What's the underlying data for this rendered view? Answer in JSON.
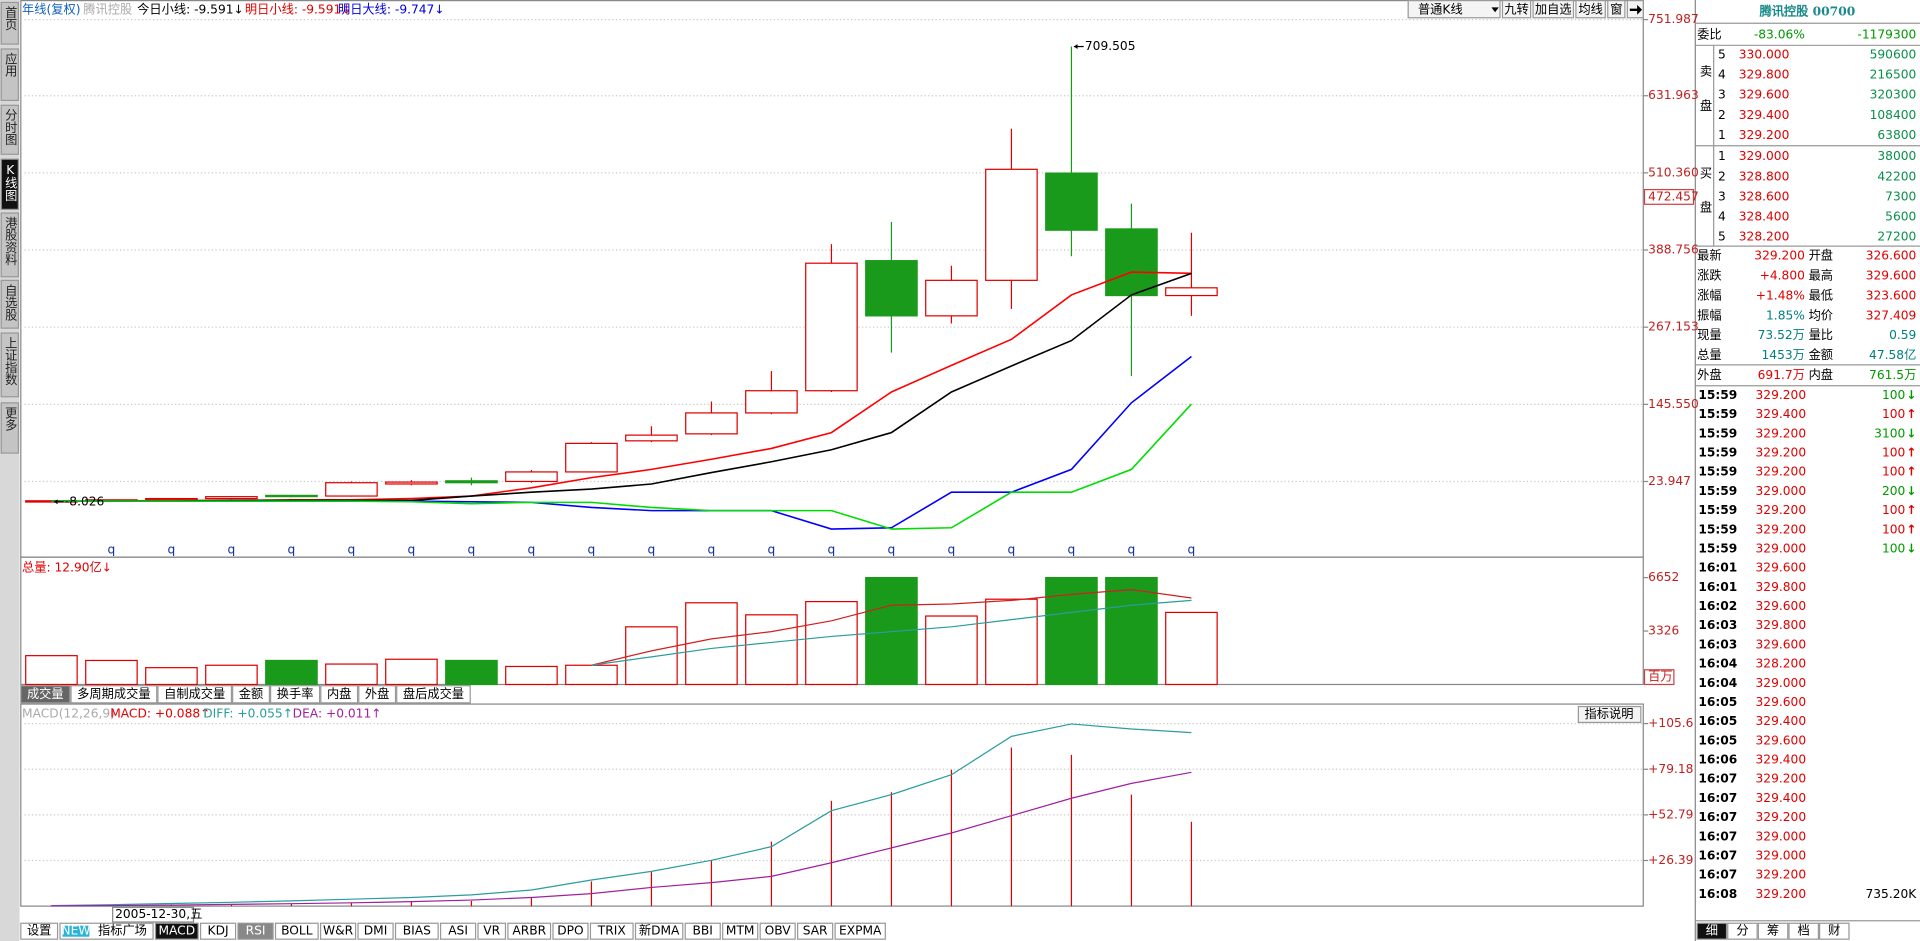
{
  "sidebar": {
    "tabs": [
      "首页",
      "应用",
      "分时图",
      "K线图",
      "港股资料",
      "自选股",
      "上证指数",
      "更多"
    ],
    "active": 3
  },
  "header": {
    "period": "年线(复权)",
    "name": "腾讯控股",
    "indicators": [
      "今日小线: -9.591↓",
      "明日小线: -9.591↓",
      "明日大线: -9.747↓"
    ],
    "indicator_colors": [
      "#000000",
      "#e00000",
      "#0000e0"
    ]
  },
  "toolbar": [
    "普通K线",
    "九转",
    "加自选",
    "均线",
    "窗"
  ],
  "kline": {
    "ylim": [
      -95.3,
      751.987
    ],
    "yticks": [
      23.947,
      {
        "value": 145.55,
        "label": "145.550"
      },
      267.153,
      388.756,
      {
        "value": 510.36,
        "label": "510.360"
      },
      631.963,
      751.987
    ],
    "grid": true,
    "cursor_value": 472.457,
    "categories": [
      null,
      "q",
      "q",
      "q",
      "q",
      "q",
      "q",
      "q",
      "q",
      "q",
      "q",
      "q",
      "q",
      "q",
      "q",
      "q",
      "q",
      "q",
      "q",
      "q"
    ],
    "up_color": "#e00000",
    "down_color": "#1a9a1a",
    "candles": [
      {
        "open": -7,
        "high": -6,
        "low": -8.026,
        "close": -6.5
      },
      {
        "open": -7,
        "high": -5,
        "low": -8,
        "close": -5
      },
      {
        "open": -5,
        "high": -3,
        "low": -6,
        "close": -3
      },
      {
        "open": -3,
        "high": 1,
        "low": -4,
        "close": 0
      },
      {
        "open": 2,
        "high": 3,
        "low": -1,
        "close": 0.5
      },
      {
        "open": 1,
        "high": 24,
        "low": 0,
        "close": 22
      },
      {
        "open": 20,
        "high": 26,
        "low": 18,
        "close": 23
      },
      {
        "open": 25,
        "high": 30,
        "low": 18,
        "close": 22
      },
      {
        "open": 24,
        "high": 42,
        "low": 22,
        "close": 39
      },
      {
        "open": 39,
        "high": 86,
        "low": 38,
        "close": 84
      },
      {
        "open": 88,
        "high": 111,
        "low": 86,
        "close": 97
      },
      {
        "open": 99,
        "high": 150,
        "low": 97,
        "close": 132
      },
      {
        "open": 132,
        "high": 198,
        "low": 130,
        "close": 167
      },
      {
        "open": 167,
        "high": 398,
        "low": 165,
        "close": 368
      },
      {
        "open": 372,
        "high": 433,
        "low": 227,
        "close": 285
      },
      {
        "open": 285,
        "high": 364,
        "low": 273,
        "close": 341
      },
      {
        "open": 341,
        "high": 580,
        "low": 296,
        "close": 516
      },
      {
        "open": 510,
        "high": 709.505,
        "low": 379,
        "close": 420
      },
      {
        "open": 422,
        "high": 462,
        "low": 190,
        "close": 317
      },
      {
        "open": 317,
        "high": 416,
        "low": 285,
        "close": 329.2
      }
    ],
    "min_label": "-8.026",
    "max_label": "709.505",
    "ma": [
      {
        "color": "#ff0000",
        "values": [
          -7,
          -7,
          -6,
          -6,
          -5,
          -5,
          -3,
          1,
          14,
          30,
          43,
          59,
          76,
          101,
          165,
          207,
          248,
          318,
          354,
          352
        ]
      },
      {
        "color": "#000000",
        "values": [
          -7,
          -7,
          -7,
          -6,
          -6,
          -6,
          -6,
          1,
          7,
          12,
          20,
          38,
          55,
          74,
          101,
          165,
          206,
          246,
          318,
          352
        ]
      },
      {
        "color": "#0000ff",
        "values": [
          -7,
          -7,
          -7,
          -7,
          -7,
          -7,
          -7,
          -8,
          -9,
          -17,
          -22,
          -22,
          -22,
          -51,
          -49,
          7,
          7,
          43,
          148,
          221
        ]
      },
      {
        "color": "#00dd00",
        "values": [
          -7,
          -7,
          -7,
          -7,
          -7,
          -7,
          -8,
          -11,
          -9,
          -9,
          -17,
          -22,
          -22,
          -22,
          -51,
          -49,
          7,
          7,
          43,
          146
        ]
      }
    ]
  },
  "volume": {
    "title": "总量: 12.90亿↓",
    "ylim": [
      0,
      7773
    ],
    "yticks": [
      3326,
      6652
    ],
    "unit": "百万",
    "values": [
      1794,
      1495,
      1046,
      1196,
      1495,
      1271,
      1570,
      1495,
      1121,
      1196,
      3588,
      5083,
      4335,
      5157,
      6652,
      4260,
      5307,
      6652,
      6652,
      4485
    ],
    "ma": [
      {
        "color": "#d02020",
        "values": [
          null,
          null,
          null,
          null,
          null,
          null,
          null,
          null,
          null,
          1196,
          2093,
          2840,
          3289,
          3961,
          4933,
          5008,
          5232,
          5606,
          5904,
          5381
        ]
      },
      {
        "color": "#2a9d9d",
        "values": [
          null,
          null,
          null,
          null,
          null,
          null,
          null,
          null,
          null,
          1196,
          1719,
          2242,
          2616,
          2990,
          3289,
          3588,
          4036,
          4485,
          4933,
          5232
        ]
      }
    ],
    "tabs": [
      "成交量",
      "多周期成交量",
      "自制成交量",
      "金额",
      "换手率",
      "内盘",
      "外盘",
      "盘后成交量"
    ],
    "active_tab": 0
  },
  "macd": {
    "params": "MACD(12,26,9)",
    "readouts": [
      "MACD: +0.088↑",
      "DIFF: +0.055↑",
      "DEA: +0.011↑"
    ],
    "readout_colors": [
      "#e00000",
      "#2a9d9d",
      "#a020a0"
    ],
    "button": "指标说明",
    "ylim": [
      0,
      116.9
    ],
    "yticks": [
      {
        "value": 26.39,
        "label": "+26.39"
      },
      {
        "value": 52.79,
        "label": "+52.79"
      },
      {
        "value": 79.18,
        "label": "+79.18"
      },
      {
        "value": 105.6,
        "label": "+105.6"
      }
    ],
    "bars": [
      0.5,
      0.7,
      1,
      1.2,
      1.5,
      2,
      2.5,
      3,
      5,
      14.3,
      20.1,
      26.5,
      37.3,
      60.9,
      65.9,
      78.9,
      91.8,
      87.5,
      64.5,
      48.8
    ],
    "bar_color": "#e00000",
    "diff": {
      "color": "#2a9d9d",
      "values": [
        0.3,
        0.8,
        1.5,
        2.2,
        3,
        4,
        5,
        6.5,
        9.3,
        15.1,
        20.1,
        26.5,
        34.4,
        55.2,
        64.5,
        76,
        98.2,
        105.4,
        102.5,
        100.4
      ]
    },
    "dea": {
      "color": "#a020a0",
      "values": [
        0.1,
        0.3,
        0.6,
        1,
        1.4,
        1.9,
        2.6,
        3.5,
        5,
        7.2,
        10.8,
        13.6,
        17.2,
        25.1,
        33.7,
        42.3,
        52.3,
        62.4,
        71,
        77.4
      ]
    }
  },
  "date_label": "2005-12-30,五",
  "bottom_tabs": {
    "badge": "NEW",
    "tabs": [
      "设置",
      "指标广场",
      "MACD",
      "KDJ",
      "RSI",
      "BOLL",
      "W&R",
      "DMI",
      "BIAS",
      "ASI",
      "VR",
      "ARBR",
      "DPO",
      "TRIX",
      "新DMA",
      "BBI",
      "MTM",
      "OBV",
      "SAR",
      "EXPMA"
    ],
    "active": 2,
    "highlight": 4
  },
  "quote": {
    "title": "腾讯控股 00700",
    "weibi": {
      "label": "委比",
      "pct": "-83.06%",
      "diff": "-1179300"
    },
    "sell": {
      "label": "卖盘",
      "rows": [
        {
          "level": "5",
          "price": "330.000",
          "vol": "590600"
        },
        {
          "level": "4",
          "price": "329.800",
          "vol": "216500"
        },
        {
          "level": "3",
          "price": "329.600",
          "vol": "320300"
        },
        {
          "level": "2",
          "price": "329.400",
          "vol": "108400"
        },
        {
          "level": "1",
          "price": "329.200",
          "vol": "63800"
        }
      ]
    },
    "buy": {
      "label": "买盘",
      "rows": [
        {
          "level": "1",
          "price": "329.000",
          "vol": "38000"
        },
        {
          "level": "2",
          "price": "328.800",
          "vol": "42200"
        },
        {
          "level": "3",
          "price": "328.600",
          "vol": "7300"
        },
        {
          "level": "4",
          "price": "328.400",
          "vol": "5600"
        },
        {
          "level": "5",
          "price": "328.200",
          "vol": "27200"
        }
      ]
    },
    "stats": [
      {
        "l1": "最新",
        "v1": "329.200",
        "l2": "开盘",
        "v2": "326.600",
        "c1": "#e00000",
        "c2": "#e00000"
      },
      {
        "l1": "涨跌",
        "v1": "+4.800",
        "l2": "最高",
        "v2": "329.600",
        "c1": "#e00000",
        "c2": "#e00000"
      },
      {
        "l1": "涨幅",
        "v1": "+1.48%",
        "l2": "最低",
        "v2": "323.600",
        "c1": "#e00000",
        "c2": "#e00000"
      },
      {
        "l1": "振幅",
        "v1": "1.85%",
        "l2": "均价",
        "v2": "327.409",
        "c1": "#008080",
        "c2": "#e00000"
      },
      {
        "l1": "现量",
        "v1": "73.52万",
        "l2": "量比",
        "v2": "0.59",
        "c1": "#008080",
        "c2": "#008080"
      },
      {
        "l1": "总量",
        "v1": "1453万",
        "l2": "金额",
        "v2": "47.58亿",
        "c1": "#008080",
        "c2": "#008080"
      },
      {
        "l1": "外盘",
        "v1": "691.7万",
        "l2": "内盘",
        "v2": "761.5万",
        "c1": "#e00000",
        "c2": "#009900"
      }
    ],
    "trades": [
      {
        "time": "15:59",
        "price": "329.200",
        "vol": "100",
        "dir": "↓"
      },
      {
        "time": "15:59",
        "price": "329.400",
        "vol": "100",
        "dir": "↑"
      },
      {
        "time": "15:59",
        "price": "329.200",
        "vol": "3100",
        "dir": "↓"
      },
      {
        "time": "15:59",
        "price": "329.200",
        "vol": "100",
        "dir": "↑"
      },
      {
        "time": "15:59",
        "price": "329.200",
        "vol": "100",
        "dir": "↑"
      },
      {
        "time": "15:59",
        "price": "329.000",
        "vol": "200",
        "dir": "↓"
      },
      {
        "time": "15:59",
        "price": "329.200",
        "vol": "100",
        "dir": "↑"
      },
      {
        "time": "15:59",
        "price": "329.200",
        "vol": "100",
        "dir": "↑"
      },
      {
        "time": "15:59",
        "price": "329.000",
        "vol": "100",
        "dir": "↓"
      },
      {
        "time": "16:01",
        "price": "329.600"
      },
      {
        "time": "16:01",
        "price": "329.800"
      },
      {
        "time": "16:02",
        "price": "329.600"
      },
      {
        "time": "16:03",
        "price": "329.800"
      },
      {
        "time": "16:03",
        "price": "329.600"
      },
      {
        "time": "16:04",
        "price": "328.200"
      },
      {
        "time": "16:04",
        "price": "329.000"
      },
      {
        "time": "16:05",
        "price": "329.600"
      },
      {
        "time": "16:05",
        "price": "329.400"
      },
      {
        "time": "16:05",
        "price": "329.600"
      },
      {
        "time": "16:06",
        "price": "329.400"
      },
      {
        "time": "16:07",
        "price": "329.200"
      },
      {
        "time": "16:07",
        "price": "329.400"
      },
      {
        "time": "16:07",
        "price": "329.200"
      },
      {
        "time": "16:07",
        "price": "329.000"
      },
      {
        "time": "16:07",
        "price": "329.000"
      },
      {
        "time": "16:07",
        "price": "329.200"
      },
      {
        "time": "16:08",
        "price": "329.200",
        "vol": "735.20K"
      }
    ],
    "price_color": "#e00000",
    "up_color": "#e00000",
    "down_color": "#009900",
    "tabs": [
      "细",
      "分",
      "筹",
      "档",
      "财"
    ]
  }
}
